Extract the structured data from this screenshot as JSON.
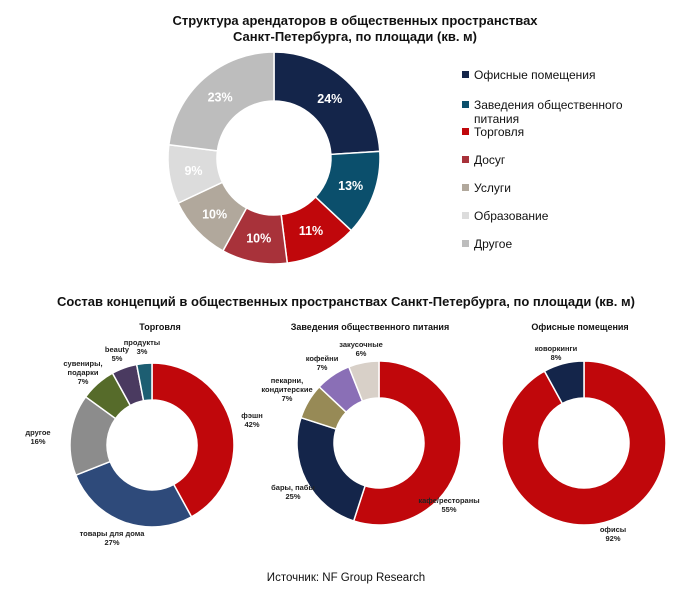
{
  "title_top": [
    "Структура арендаторов в общественных пространствах",
    "Санкт-Петербурга, по площади (кв. м)"
  ],
  "title_bottom": "Состав концепций в общественных пространствах Санкт-Петербурга, по площади (кв. м)",
  "source": "Источник: NF Group Research",
  "chart_data": [
    {
      "type": "pie",
      "variant": "donut",
      "title": "Структура арендаторов в общественных пространствах Санкт-Петербурга, по площади (кв. м)",
      "legend_position": "right",
      "slices": [
        {
          "name": "Офисные помещения",
          "value": 24,
          "label": "24%",
          "color": "#14254a"
        },
        {
          "name": "Заведения общественного питания",
          "value": 13,
          "label": "13%",
          "color": "#0b4f6c"
        },
        {
          "name": "Торговля",
          "value": 11,
          "label": "11%",
          "color": "#c0070b"
        },
        {
          "name": "Досуг",
          "value": 10,
          "label": "10%",
          "color": "#a8323a"
        },
        {
          "name": "Услуги",
          "value": 10,
          "label": "10%",
          "color": "#b1a89c"
        },
        {
          "name": "Образование",
          "value": 9,
          "label": "9%",
          "color": "#dcdcdc"
        },
        {
          "name": "Другое",
          "value": 23,
          "label": "23%",
          "color": "#bdbdbd"
        }
      ]
    },
    {
      "type": "pie",
      "variant": "donut",
      "title": "Торговля",
      "slices": [
        {
          "name": "фэшн",
          "value": 42,
          "label": "42%",
          "color": "#c0070b"
        },
        {
          "name": "товары для дома",
          "value": 27,
          "label": "27%",
          "color": "#2e4a7a"
        },
        {
          "name": "другое",
          "value": 16,
          "label": "16%",
          "color": "#8c8c8c"
        },
        {
          "name": "сувениры, подарки",
          "value": 7,
          "label": "7%",
          "color": "#566b2a"
        },
        {
          "name": "beauty",
          "value": 5,
          "label": "5%",
          "color": "#4a3a60"
        },
        {
          "name": "продукты",
          "value": 3,
          "label": "3%",
          "color": "#1d5e72"
        }
      ]
    },
    {
      "type": "pie",
      "variant": "donut",
      "title": "Заведения общественного питания",
      "slices": [
        {
          "name": "кафе/рестораны",
          "value": 55,
          "label": "55%",
          "color": "#c0070b"
        },
        {
          "name": "бары, пабы",
          "value": 25,
          "label": "25%",
          "color": "#14254a"
        },
        {
          "name": "пекарни, кондитерские",
          "value": 7,
          "label": "7%",
          "color": "#978a56"
        },
        {
          "name": "кофейни",
          "value": 7,
          "label": "7%",
          "color": "#8a6fb6"
        },
        {
          "name": "закусочные",
          "value": 6,
          "label": "6%",
          "color": "#d8d0c8"
        }
      ]
    },
    {
      "type": "pie",
      "variant": "donut",
      "title": "Офисные помещения",
      "slices": [
        {
          "name": "офисы",
          "value": 92,
          "label": "92%",
          "color": "#c0070b"
        },
        {
          "name": "коворкинги",
          "value": 8,
          "label": "8%",
          "color": "#14254a"
        }
      ]
    }
  ]
}
